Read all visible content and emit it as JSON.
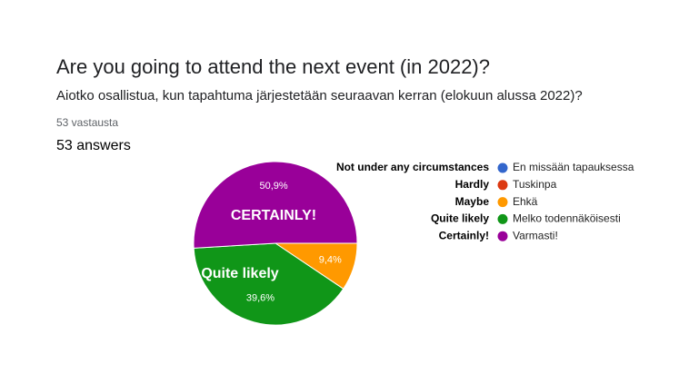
{
  "header": {
    "title": "Are you going to attend the next event (in 2022)?",
    "subtitle": "Aiotko osallistua, kun tapahtuma järjestetään seuraavan kerran (elokuun alussa 2022)?",
    "response_count": "53 vastausta",
    "answers": "53 answers"
  },
  "chart_data": {
    "type": "pie",
    "categories": [
      "En missään tapauksessa",
      "Tuskinpa",
      "Ehkä",
      "Melko todennäköisesti",
      "Varmasti!"
    ],
    "legend_annotations": [
      "Not under any circumstances",
      "Hardly",
      "Maybe",
      "Quite likely",
      "Certainly!"
    ],
    "values": [
      0,
      0,
      9.4,
      39.6,
      50.9
    ],
    "value_labels": [
      null,
      null,
      "9,4%",
      "39,6%",
      "50,9%"
    ],
    "slice_annotations": [
      null,
      null,
      null,
      "Quite likely",
      "CERTAINLY!"
    ],
    "colors": [
      "#3366cc",
      "#dc3912",
      "#ff9900",
      "#109618",
      "#990099"
    ],
    "legend": "right"
  }
}
